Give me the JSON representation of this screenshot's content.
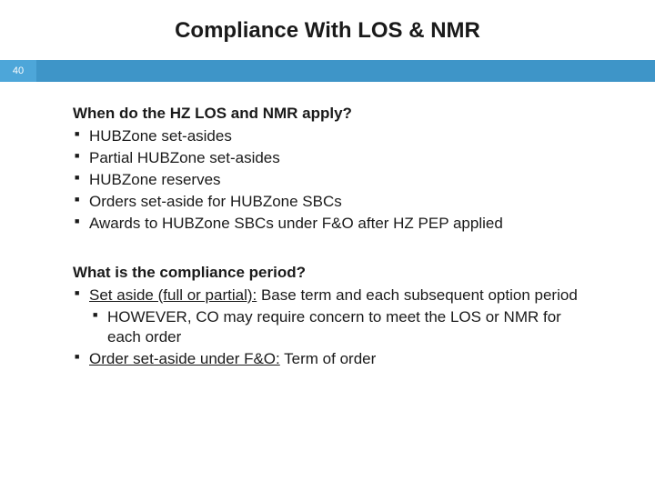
{
  "slide": {
    "title": "Compliance With LOS & NMR",
    "number": "40",
    "colors": {
      "bar_main": "#3e95c8",
      "bar_number_bg": "#4da6d9",
      "bar_number_text": "#ffffff",
      "text": "#1a1a1a",
      "background": "#ffffff"
    },
    "section1": {
      "heading": "When do the HZ LOS and NMR apply?",
      "bullets": [
        "HUBZone set-asides",
        "Partial HUBZone set-asides",
        "HUBZone reserves",
        "Orders set-aside for HUBZone SBCs",
        "Awards to HUBZone SBCs under F&O after HZ PEP applied"
      ]
    },
    "section2": {
      "heading": "What is the compliance period?",
      "bullet1_underlined": "Set aside (full or partial):",
      "bullet1_rest": " Base term and each subsequent option period",
      "sub_bullet": "HOWEVER, CO may require concern to meet the LOS or NMR for each order",
      "bullet2_underlined": "Order set-aside under F&O:",
      "bullet2_rest": " Term of order"
    }
  }
}
